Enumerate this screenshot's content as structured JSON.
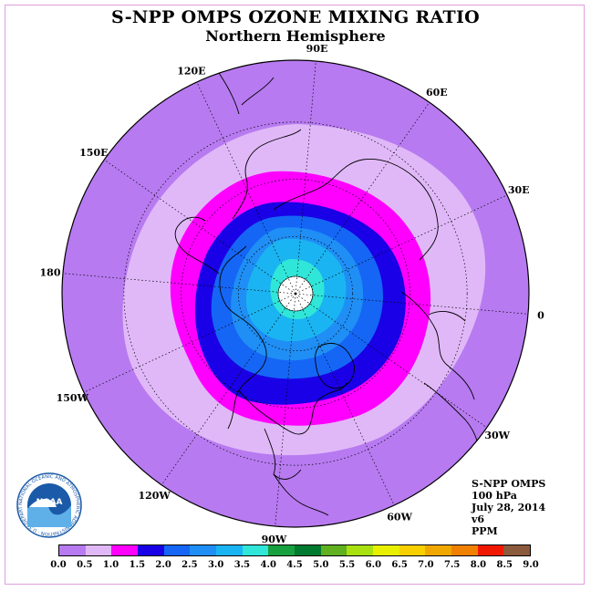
{
  "title": "S-NPP OMPS OZONE MIXING RATIO",
  "subtitle": "Northern Hemisphere",
  "longitude_labels": [
    {
      "text": "90E",
      "lon": 90
    },
    {
      "text": "60E",
      "lon": 60
    },
    {
      "text": "30E",
      "lon": 30
    },
    {
      "text": "0",
      "lon": 0
    },
    {
      "text": "30W",
      "lon": -30
    },
    {
      "text": "60W",
      "lon": -60
    },
    {
      "text": "90W",
      "lon": -90
    },
    {
      "text": "120W",
      "lon": -120
    },
    {
      "text": "150W",
      "lon": -150
    },
    {
      "text": "180",
      "lon": 180
    },
    {
      "text": "150E",
      "lon": 150
    },
    {
      "text": "120E",
      "lon": 120
    }
  ],
  "info": {
    "instrument": "S-NPP OMPS",
    "level": "100 hPa",
    "date": "July 28, 2014",
    "version": "v6",
    "units": "PPM"
  },
  "logo": {
    "text": "NOAA",
    "ring_text": "NATIONAL OCEANIC AND ATMOSPHERIC ADMINISTRATION · U.S. DEPARTMENT OF COMMERCE"
  },
  "colorbar": {
    "ticks": [
      "0.0",
      "0.5",
      "1.0",
      "1.5",
      "2.0",
      "2.5",
      "3.0",
      "3.5",
      "4.0",
      "4.5",
      "5.0",
      "5.5",
      "6.0",
      "6.5",
      "7.0",
      "7.5",
      "8.0",
      "8.5",
      "9.0"
    ],
    "colors": [
      "#b77af0",
      "#e0b8f8",
      "#ff00ff",
      "#1a00e6",
      "#1566f5",
      "#1f8ef5",
      "#1ab4f2",
      "#30e6d8",
      "#16a040",
      "#007a2e",
      "#60b020",
      "#a8e010",
      "#e8f000",
      "#f8d000",
      "#f0a800",
      "#f08000",
      "#f01800",
      "#8b5a3c"
    ]
  },
  "ozone_levels_ppm": [
    {
      "band": "0.0-0.5",
      "color": "#b77af0"
    },
    {
      "band": "0.5-1.0",
      "color": "#e0b8f8"
    },
    {
      "band": "1.0-1.5",
      "color": "#ff00ff"
    },
    {
      "band": "1.5-2.0",
      "color": "#1a00e6"
    },
    {
      "band": "2.0-2.5",
      "color": "#1566f5"
    },
    {
      "band": "2.5-3.0",
      "color": "#1f8ef5"
    },
    {
      "band": "3.0-3.5",
      "color": "#1ab4f2"
    },
    {
      "band": "3.5-4.0",
      "color": "#30e6d8"
    }
  ]
}
